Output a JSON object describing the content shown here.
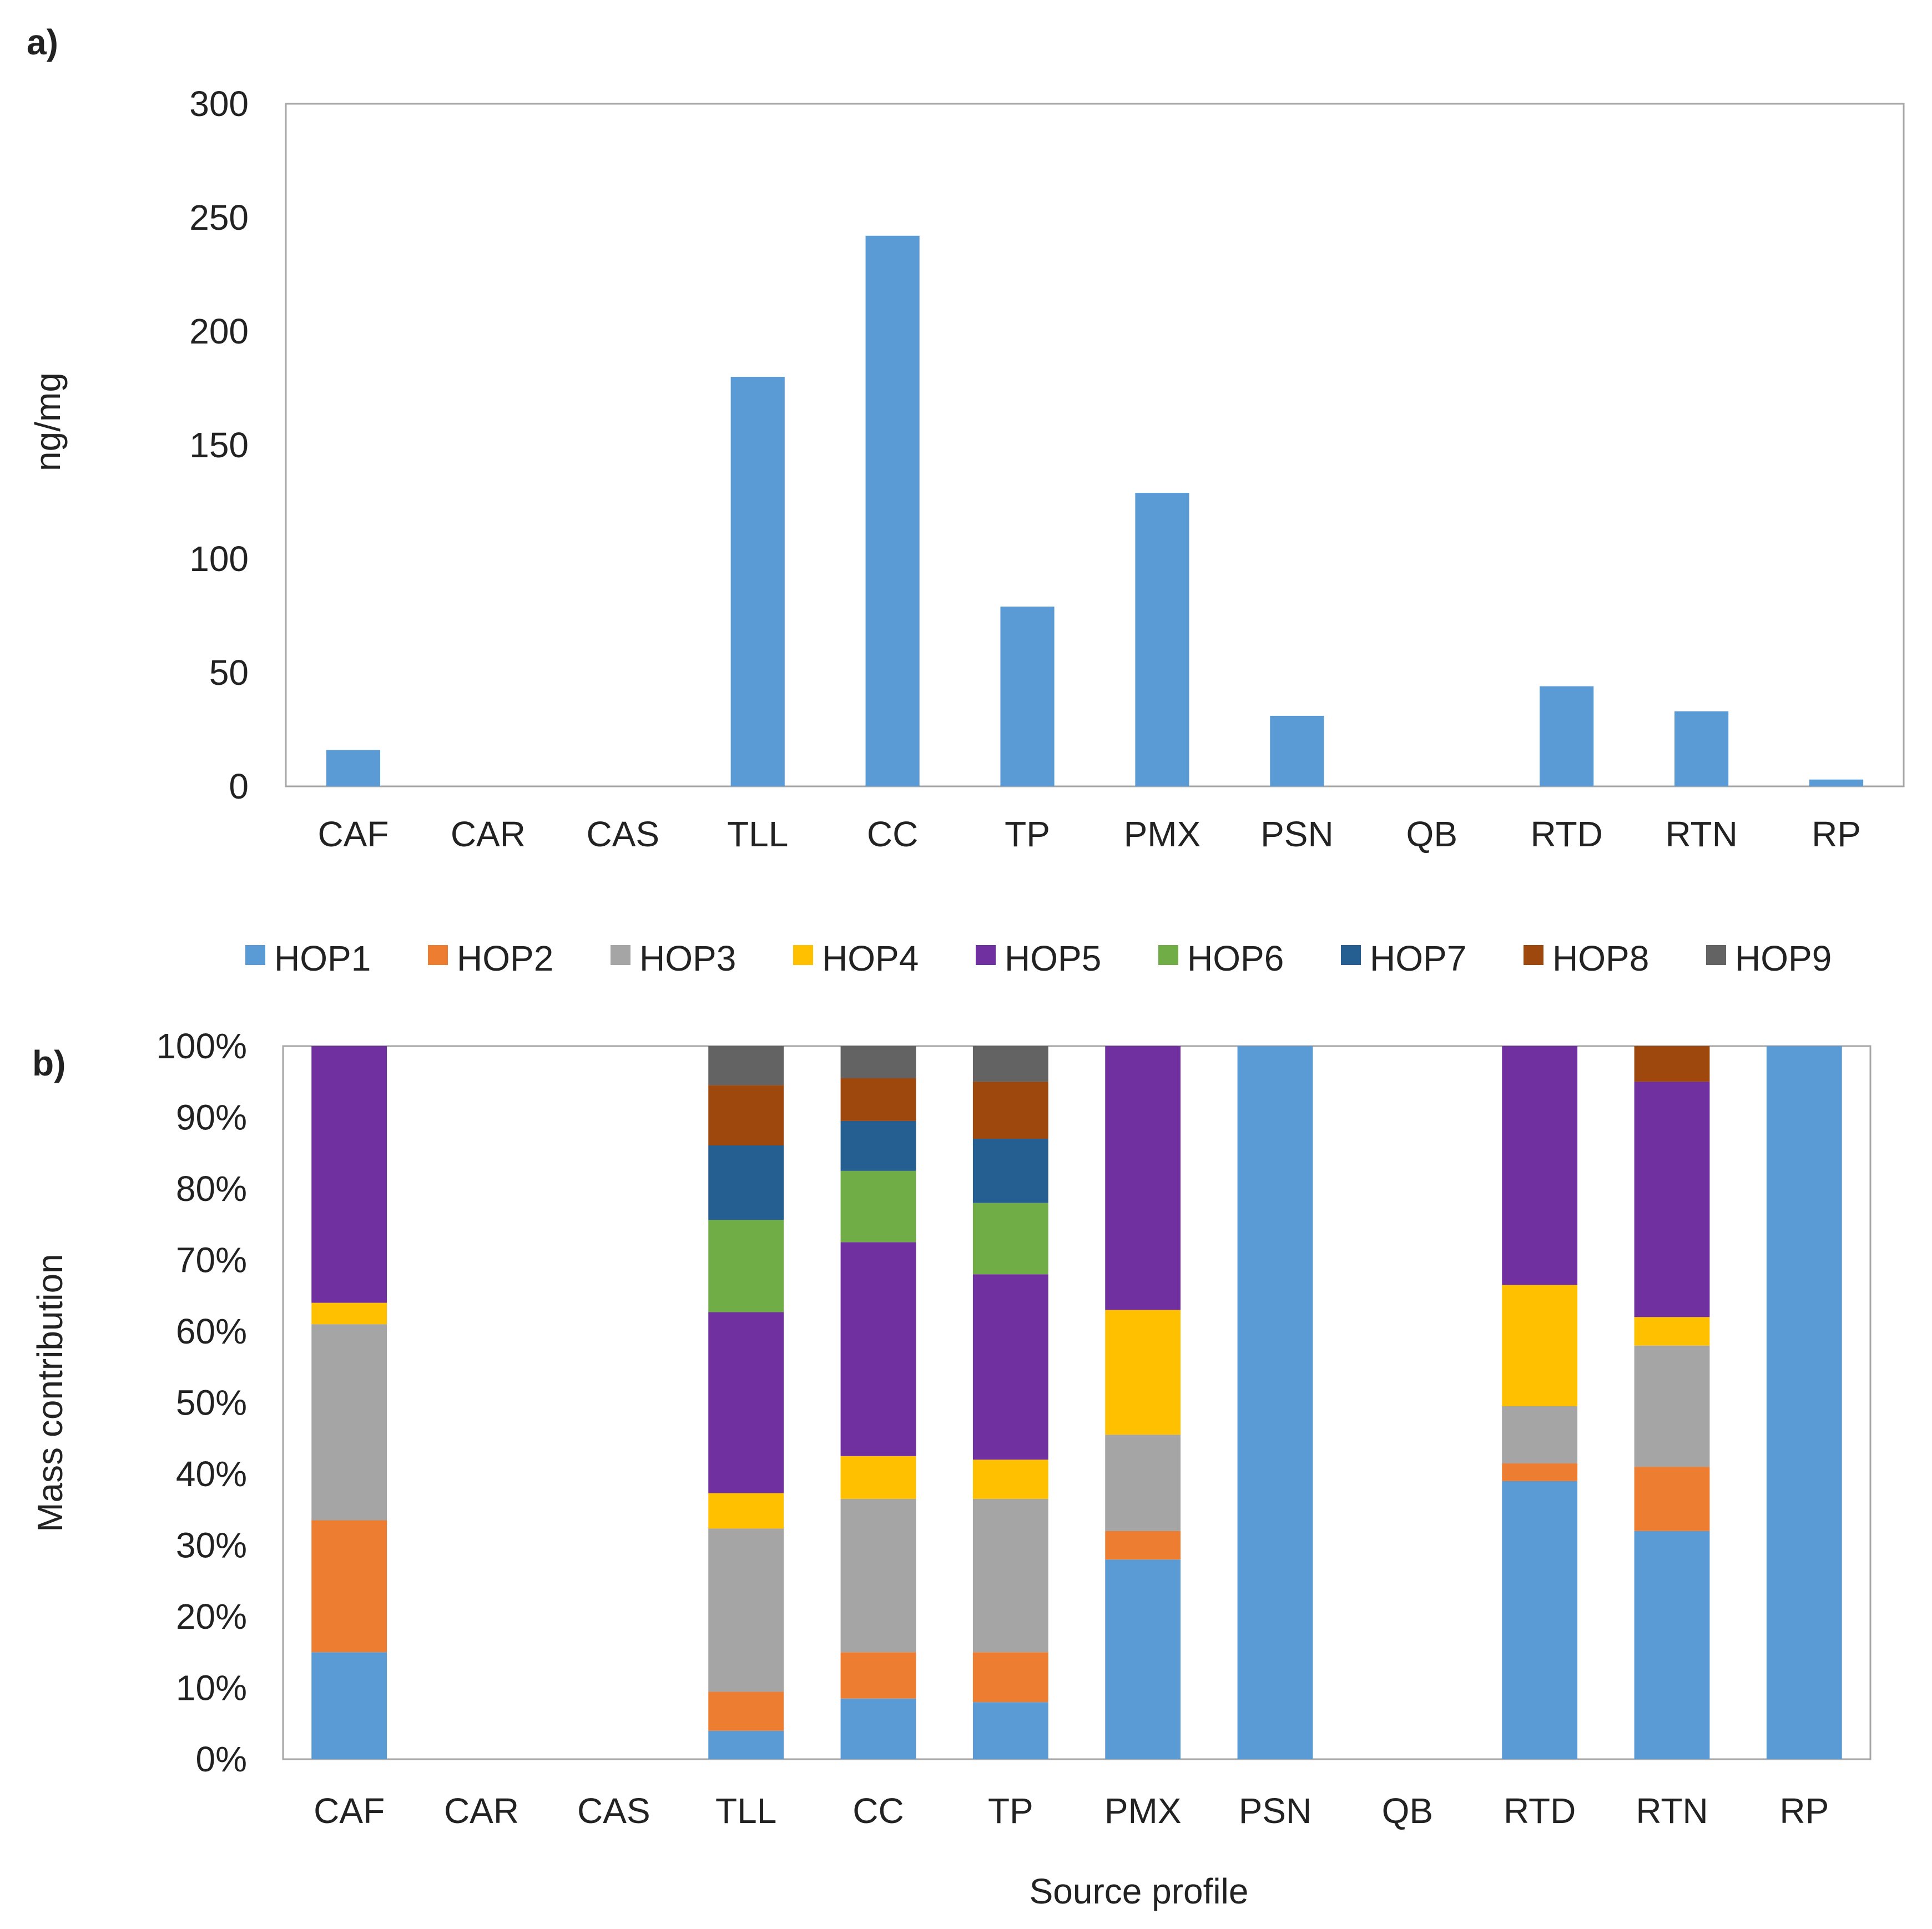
{
  "chart_data": [
    {
      "panel_label": "a)",
      "type": "bar",
      "categories": [
        "CAF",
        "CAR",
        "CAS",
        "TLL",
        "CC",
        "TP",
        "PMX",
        "PSN",
        "QB",
        "RTD",
        "RTN",
        "RP"
      ],
      "values": [
        16,
        0,
        0,
        180,
        242,
        79,
        129,
        31,
        0,
        44,
        33,
        3
      ],
      "ylabel": "ng/mg",
      "xlabel": "",
      "ylim": [
        0,
        300
      ],
      "yticks": [
        0,
        50,
        100,
        150,
        200,
        250,
        300
      ],
      "bar_color": "#5B9BD5",
      "grid": false
    },
    {
      "panel_label": "b)",
      "type": "bar",
      "stacked": "percent",
      "categories": [
        "CAF",
        "CAR",
        "CAS",
        "TLL",
        "CC",
        "TP",
        "PMX",
        "PSN",
        "QB",
        "RTD",
        "RTN",
        "RP"
      ],
      "series": [
        {
          "name": "HOP1",
          "color": "#5B9BD5",
          "values": [
            15,
            0,
            0,
            4,
            8.5,
            8,
            28,
            100,
            0,
            39,
            32,
            100
          ]
        },
        {
          "name": "HOP2",
          "color": "#ED7D31",
          "values": [
            18.5,
            0,
            0,
            5.5,
            6.5,
            7,
            4,
            0,
            0,
            2.5,
            9,
            0
          ]
        },
        {
          "name": "HOP3",
          "color": "#A5A5A5",
          "values": [
            27.5,
            0,
            0,
            23,
            21.5,
            21.5,
            13.5,
            0,
            0,
            8,
            17,
            0
          ]
        },
        {
          "name": "HOP4",
          "color": "#FFC000",
          "values": [
            3,
            0,
            0,
            5,
            6,
            5.5,
            17.5,
            0,
            0,
            17,
            4,
            0
          ]
        },
        {
          "name": "HOP5",
          "color": "#7030A0",
          "values": [
            36,
            0,
            0,
            25.5,
            30,
            26,
            37,
            0,
            0,
            33.5,
            33,
            0
          ]
        },
        {
          "name": "HOP6",
          "color": "#70AD47",
          "values": [
            0,
            0,
            0,
            13,
            10,
            10,
            0,
            0,
            0,
            0,
            0,
            0
          ]
        },
        {
          "name": "HOP7",
          "color": "#255E91",
          "values": [
            0,
            0,
            0,
            10.5,
            7,
            9,
            0,
            0,
            0,
            0,
            0,
            0
          ]
        },
        {
          "name": "HOP8",
          "color": "#9E480E",
          "values": [
            0,
            0,
            0,
            8.5,
            6,
            8,
            0,
            0,
            0,
            0,
            5,
            0
          ]
        },
        {
          "name": "HOP9",
          "color": "#636363",
          "values": [
            0,
            0,
            0,
            5.5,
            4.5,
            5,
            0,
            0,
            0,
            0,
            0,
            0
          ]
        }
      ],
      "ylabel": "Mass contribution",
      "xlabel": "Source profile",
      "ylim": [
        0,
        100
      ],
      "yticks": [
        "0%",
        "10%",
        "20%",
        "30%",
        "40%",
        "50%",
        "60%",
        "70%",
        "80%",
        "90%",
        "100%"
      ],
      "legend": "top",
      "grid": false
    }
  ]
}
